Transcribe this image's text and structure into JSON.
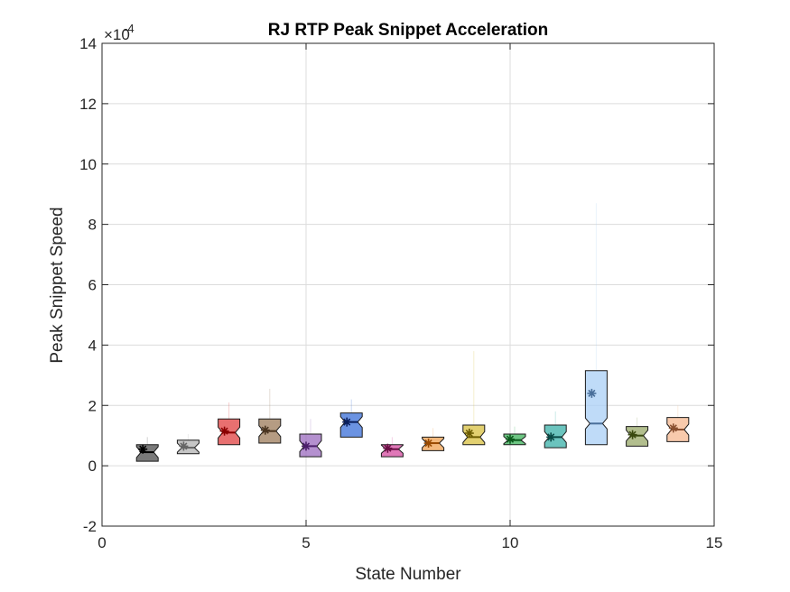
{
  "chart_data": {
    "type": "box",
    "title": "RJ  RTP Peak Snippet Acceleration",
    "xlabel": "State Number",
    "ylabel": "Peak Snippet Speed",
    "y_exponent_label": "×10",
    "y_exponent_value": "-4",
    "xlim": [
      0,
      15
    ],
    "ylim": [
      -2,
      14
    ],
    "xticks": [
      0,
      5,
      10,
      15
    ],
    "yticks": [
      -2,
      0,
      2,
      4,
      6,
      8,
      10,
      12,
      14
    ],
    "grid": true,
    "scale_note": "y values in units of 1e-4",
    "series": [
      {
        "state": 1,
        "mean": 0.55,
        "median": 0.45,
        "q1": 0.15,
        "q3": 0.7,
        "whisker_high": 0.95,
        "color": "#4d4d4d",
        "marker": "#000000"
      },
      {
        "state": 2,
        "mean": 0.65,
        "median": 0.6,
        "q1": 0.4,
        "q3": 0.85,
        "whisker_high": 1.05,
        "color": "#b3b3b3",
        "marker": "#666666"
      },
      {
        "state": 3,
        "mean": 1.15,
        "median": 1.1,
        "q1": 0.7,
        "q3": 1.55,
        "whisker_high": 2.1,
        "color": "#e04040",
        "marker": "#8b0000"
      },
      {
        "state": 4,
        "mean": 1.18,
        "median": 1.15,
        "q1": 0.75,
        "q3": 1.55,
        "whisker_high": 2.55,
        "color": "#9c7b5a",
        "marker": "#4a3520"
      },
      {
        "state": 5,
        "mean": 0.65,
        "median": 0.65,
        "q1": 0.3,
        "q3": 1.05,
        "whisker_high": 1.55,
        "color": "#9b6bbf",
        "marker": "#4b1f6b"
      },
      {
        "state": 6,
        "mean": 1.45,
        "median": 1.45,
        "q1": 0.95,
        "q3": 1.75,
        "whisker_high": 2.2,
        "color": "#3a6fd8",
        "marker": "#0a1f5c"
      },
      {
        "state": 7,
        "mean": 0.58,
        "median": 0.55,
        "q1": 0.3,
        "q3": 0.7,
        "whisker_high": 0.95,
        "color": "#d64ba0",
        "marker": "#6b0f45"
      },
      {
        "state": 8,
        "mean": 0.75,
        "median": 0.75,
        "q1": 0.5,
        "q3": 0.95,
        "whisker_high": 1.25,
        "color": "#f0a050",
        "marker": "#9a4a00"
      },
      {
        "state": 9,
        "mean": 1.08,
        "median": 0.95,
        "q1": 0.7,
        "q3": 1.35,
        "whisker_high": 3.8,
        "color": "#d8c040",
        "marker": "#6b5c00"
      },
      {
        "state": 10,
        "mean": 0.88,
        "median": 0.85,
        "q1": 0.7,
        "q3": 1.05,
        "whisker_high": 1.3,
        "color": "#3cb35a",
        "marker": "#0b5a1c"
      },
      {
        "state": 11,
        "mean": 0.95,
        "median": 0.95,
        "q1": 0.6,
        "q3": 1.35,
        "whisker_high": 1.8,
        "color": "#3ab0a8",
        "marker": "#0a4a46"
      },
      {
        "state": 12,
        "mean": 2.4,
        "median": 1.4,
        "q1": 0.7,
        "q3": 3.15,
        "whisker_high": 8.7,
        "color": "#a9cff5",
        "marker": "#4a6f9a"
      },
      {
        "state": 13,
        "mean": 1.03,
        "median": 1.0,
        "q1": 0.65,
        "q3": 1.3,
        "whisker_high": 1.6,
        "color": "#98a868",
        "marker": "#3a4a10"
      },
      {
        "state": 14,
        "mean": 1.25,
        "median": 1.2,
        "q1": 0.8,
        "q3": 1.6,
        "whisker_high": 2.0,
        "color": "#f5b890",
        "marker": "#8a5030"
      }
    ]
  }
}
